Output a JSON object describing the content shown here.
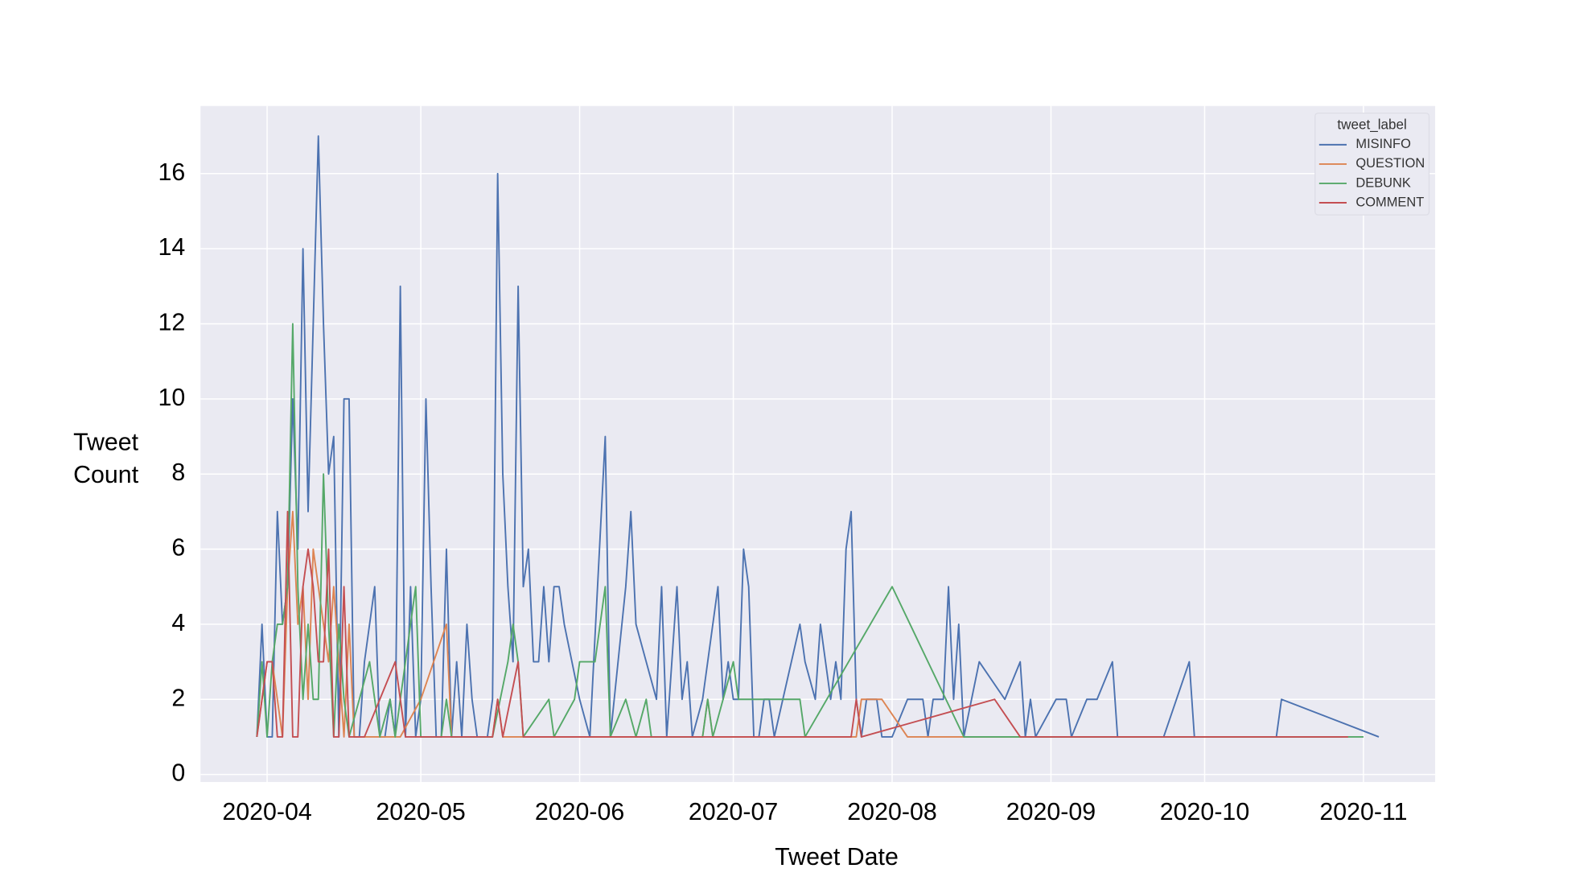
{
  "chart_data": {
    "type": "line",
    "xlabel": "Tweet Date",
    "ylabel": "Tweet Count",
    "legend_title": "tweet_label",
    "legend": "upper right",
    "grid": true,
    "xlim": [
      -13,
      228
    ],
    "ylim": [
      -0.2,
      17.8
    ],
    "xticks": [
      {
        "value": 0,
        "label": "2020-04"
      },
      {
        "value": 30,
        "label": "2020-05"
      },
      {
        "value": 61,
        "label": "2020-06"
      },
      {
        "value": 91,
        "label": "2020-07"
      },
      {
        "value": 122,
        "label": "2020-08"
      },
      {
        "value": 153,
        "label": "2020-09"
      },
      {
        "value": 183,
        "label": "2020-10"
      },
      {
        "value": 214,
        "label": "2020-11"
      }
    ],
    "yticks": [
      0,
      2,
      4,
      6,
      8,
      10,
      12,
      14,
      16
    ],
    "series": [
      {
        "name": "MISINFO",
        "color": "#4c72b0",
        "x": [
          -2,
          -1,
          0,
          1,
          2,
          3,
          4,
          5,
          6,
          7,
          8,
          9,
          10,
          11,
          12,
          13,
          14,
          15,
          16,
          17,
          18,
          19,
          20,
          21,
          22,
          23,
          24,
          25,
          26,
          27,
          28,
          29,
          30,
          31,
          32,
          33,
          34,
          35,
          36,
          37,
          38,
          39,
          40,
          41,
          43,
          44,
          45,
          46,
          47,
          48,
          49,
          50,
          51,
          52,
          53,
          54,
          55,
          56,
          57,
          58,
          61,
          63,
          66,
          67,
          70,
          71,
          72,
          74,
          76,
          77,
          78,
          80,
          81,
          82,
          83,
          85,
          87,
          88,
          89,
          90,
          91,
          92,
          93,
          94,
          95,
          96,
          97,
          98,
          99,
          104,
          105,
          107,
          108,
          109,
          110,
          111,
          112,
          113,
          114,
          115,
          116,
          117,
          118,
          119,
          120,
          122,
          125,
          128,
          129,
          130,
          132,
          133,
          134,
          135,
          136,
          139,
          144,
          147,
          148,
          149,
          150,
          154,
          156,
          157,
          160,
          162,
          165,
          166,
          175,
          180,
          181,
          197,
          198,
          217
        ],
        "values": [
          1,
          4,
          1,
          1,
          7,
          4,
          5,
          10,
          6,
          14,
          7,
          12,
          17,
          12,
          8,
          9,
          1,
          10,
          10,
          1,
          1,
          3,
          4,
          5,
          1,
          1,
          2,
          1,
          13,
          1,
          5,
          1,
          2,
          10,
          5,
          1,
          1,
          6,
          1,
          3,
          1,
          4,
          2,
          1,
          1,
          2,
          16,
          8,
          5,
          3,
          13,
          5,
          6,
          3,
          3,
          5,
          3,
          5,
          5,
          4,
          2,
          1,
          9,
          1,
          5,
          7,
          4,
          3,
          2,
          5,
          1,
          5,
          2,
          3,
          1,
          2,
          4,
          5,
          2,
          3,
          2,
          2,
          6,
          5,
          1,
          1,
          2,
          2,
          1,
          4,
          3,
          2,
          4,
          3,
          2,
          3,
          2,
          6,
          7,
          2,
          1,
          2,
          2,
          2,
          1,
          1,
          2,
          2,
          1,
          2,
          2,
          5,
          2,
          4,
          1,
          3,
          2,
          3,
          1,
          2,
          1,
          2,
          2,
          1,
          2,
          2,
          3,
          1,
          1,
          3,
          1,
          1,
          2,
          1
        ]
      },
      {
        "name": "QUESTION",
        "color": "#dd8452",
        "x": [
          -2,
          0,
          1,
          2,
          3,
          4,
          5,
          6,
          7,
          8,
          9,
          10,
          11,
          12,
          13,
          14,
          15,
          16,
          17,
          26,
          30,
          35,
          36,
          44,
          45,
          46,
          85,
          86,
          87,
          115,
          116,
          117,
          120,
          125,
          210
        ],
        "values": [
          1,
          3,
          3,
          2,
          1,
          5,
          7,
          4,
          5,
          2,
          6,
          5,
          4,
          3,
          5,
          3,
          1,
          4,
          1,
          1,
          2,
          4,
          1,
          1,
          2,
          1,
          1,
          2,
          1,
          1,
          2,
          2,
          2,
          1,
          1
        ]
      },
      {
        "name": "DEBUNK",
        "color": "#55a868",
        "x": [
          -2,
          -1,
          0,
          1,
          2,
          3,
          4,
          5,
          6,
          7,
          8,
          9,
          10,
          11,
          12,
          13,
          14,
          15,
          16,
          20,
          22,
          24,
          25,
          29,
          30,
          34,
          35,
          36,
          44,
          47,
          48,
          49,
          50,
          55,
          56,
          60,
          61,
          62,
          64,
          66,
          67,
          70,
          72,
          74,
          75,
          85,
          86,
          87,
          91,
          92,
          104,
          105,
          122,
          136,
          214
        ],
        "values": [
          1,
          3,
          1,
          3,
          4,
          4,
          5,
          12,
          5,
          2,
          4,
          2,
          2,
          8,
          4,
          1,
          4,
          2,
          1,
          3,
          1,
          2,
          1,
          5,
          1,
          1,
          2,
          1,
          1,
          3,
          4,
          3,
          1,
          2,
          1,
          2,
          3,
          3,
          3,
          5,
          1,
          2,
          1,
          2,
          1,
          1,
          2,
          1,
          3,
          2,
          2,
          1,
          5,
          1,
          1
        ]
      },
      {
        "name": "COMMENT",
        "color": "#c44e52",
        "x": [
          -2,
          0,
          1,
          2,
          3,
          4,
          5,
          6,
          7,
          8,
          9,
          10,
          11,
          12,
          13,
          14,
          15,
          16,
          19,
          25,
          27,
          44,
          45,
          46,
          49,
          50,
          114,
          115,
          116,
          142,
          147,
          211
        ],
        "values": [
          1,
          3,
          3,
          1,
          1,
          7,
          1,
          1,
          5,
          6,
          5,
          3,
          3,
          6,
          1,
          1,
          5,
          1,
          1,
          3,
          1,
          1,
          2,
          1,
          3,
          1,
          1,
          2,
          1,
          2,
          1,
          1
        ]
      }
    ]
  }
}
